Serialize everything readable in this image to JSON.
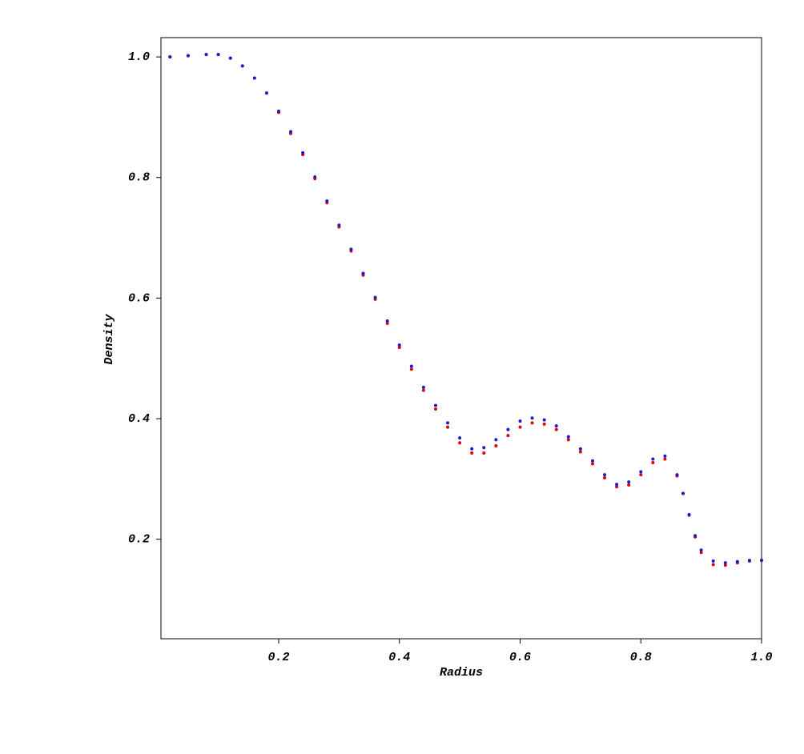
{
  "chart_data": {
    "type": "scatter",
    "x_label": "Radius",
    "y_label": "Density",
    "xlim": [
      0.005,
      1.0
    ],
    "ylim": [
      0.035,
      1.032
    ],
    "xticks": [
      0.2,
      0.4,
      0.6,
      0.8,
      {
        "value": 1,
        "label": "1.0"
      }
    ],
    "yticks": [
      0.2,
      0.4,
      0.6,
      0.8,
      {
        "value": 1,
        "label": "1.0"
      }
    ],
    "x": [
      0.02,
      0.05,
      0.08,
      0.1,
      0.12,
      0.14,
      0.16,
      0.18,
      0.2,
      0.22,
      0.24,
      0.26,
      0.28,
      0.3,
      0.32,
      0.34,
      0.36,
      0.38,
      0.4,
      0.42,
      0.44,
      0.46,
      0.48,
      0.5,
      0.52,
      0.54,
      0.56,
      0.58,
      0.6,
      0.62,
      0.64,
      0.66,
      0.68,
      0.7,
      0.72,
      0.74,
      0.76,
      0.78,
      0.8,
      0.82,
      0.84,
      0.86,
      0.87,
      0.88,
      0.89,
      0.9,
      0.92,
      0.94,
      0.96,
      0.98,
      1.0
    ],
    "series": [
      {
        "color": "#e00000",
        "values": [
          1.0,
          1.002,
          1.004,
          1.004,
          0.998,
          0.985,
          0.965,
          0.94,
          0.908,
          0.873,
          0.838,
          0.798,
          0.758,
          0.718,
          0.678,
          0.638,
          0.598,
          0.558,
          0.518,
          0.482,
          0.447,
          0.416,
          0.386,
          0.36,
          0.343,
          0.343,
          0.355,
          0.372,
          0.386,
          0.393,
          0.391,
          0.382,
          0.365,
          0.345,
          0.325,
          0.302,
          0.287,
          0.29,
          0.307,
          0.327,
          0.333,
          0.305,
          0.276,
          0.24,
          0.204,
          0.178,
          0.158,
          0.157,
          0.161,
          0.164,
          0.165
        ]
      },
      {
        "color": "#1a1ad0",
        "values": [
          1.0,
          1.002,
          1.004,
          1.004,
          0.998,
          0.985,
          0.965,
          0.94,
          0.91,
          0.876,
          0.841,
          0.801,
          0.761,
          0.721,
          0.681,
          0.641,
          0.601,
          0.562,
          0.522,
          0.487,
          0.452,
          0.422,
          0.393,
          0.368,
          0.35,
          0.352,
          0.365,
          0.382,
          0.396,
          0.401,
          0.398,
          0.388,
          0.37,
          0.35,
          0.33,
          0.307,
          0.291,
          0.295,
          0.312,
          0.333,
          0.338,
          0.307,
          0.276,
          0.241,
          0.206,
          0.182,
          0.164,
          0.161,
          0.163,
          0.165,
          0.165
        ]
      }
    ]
  }
}
